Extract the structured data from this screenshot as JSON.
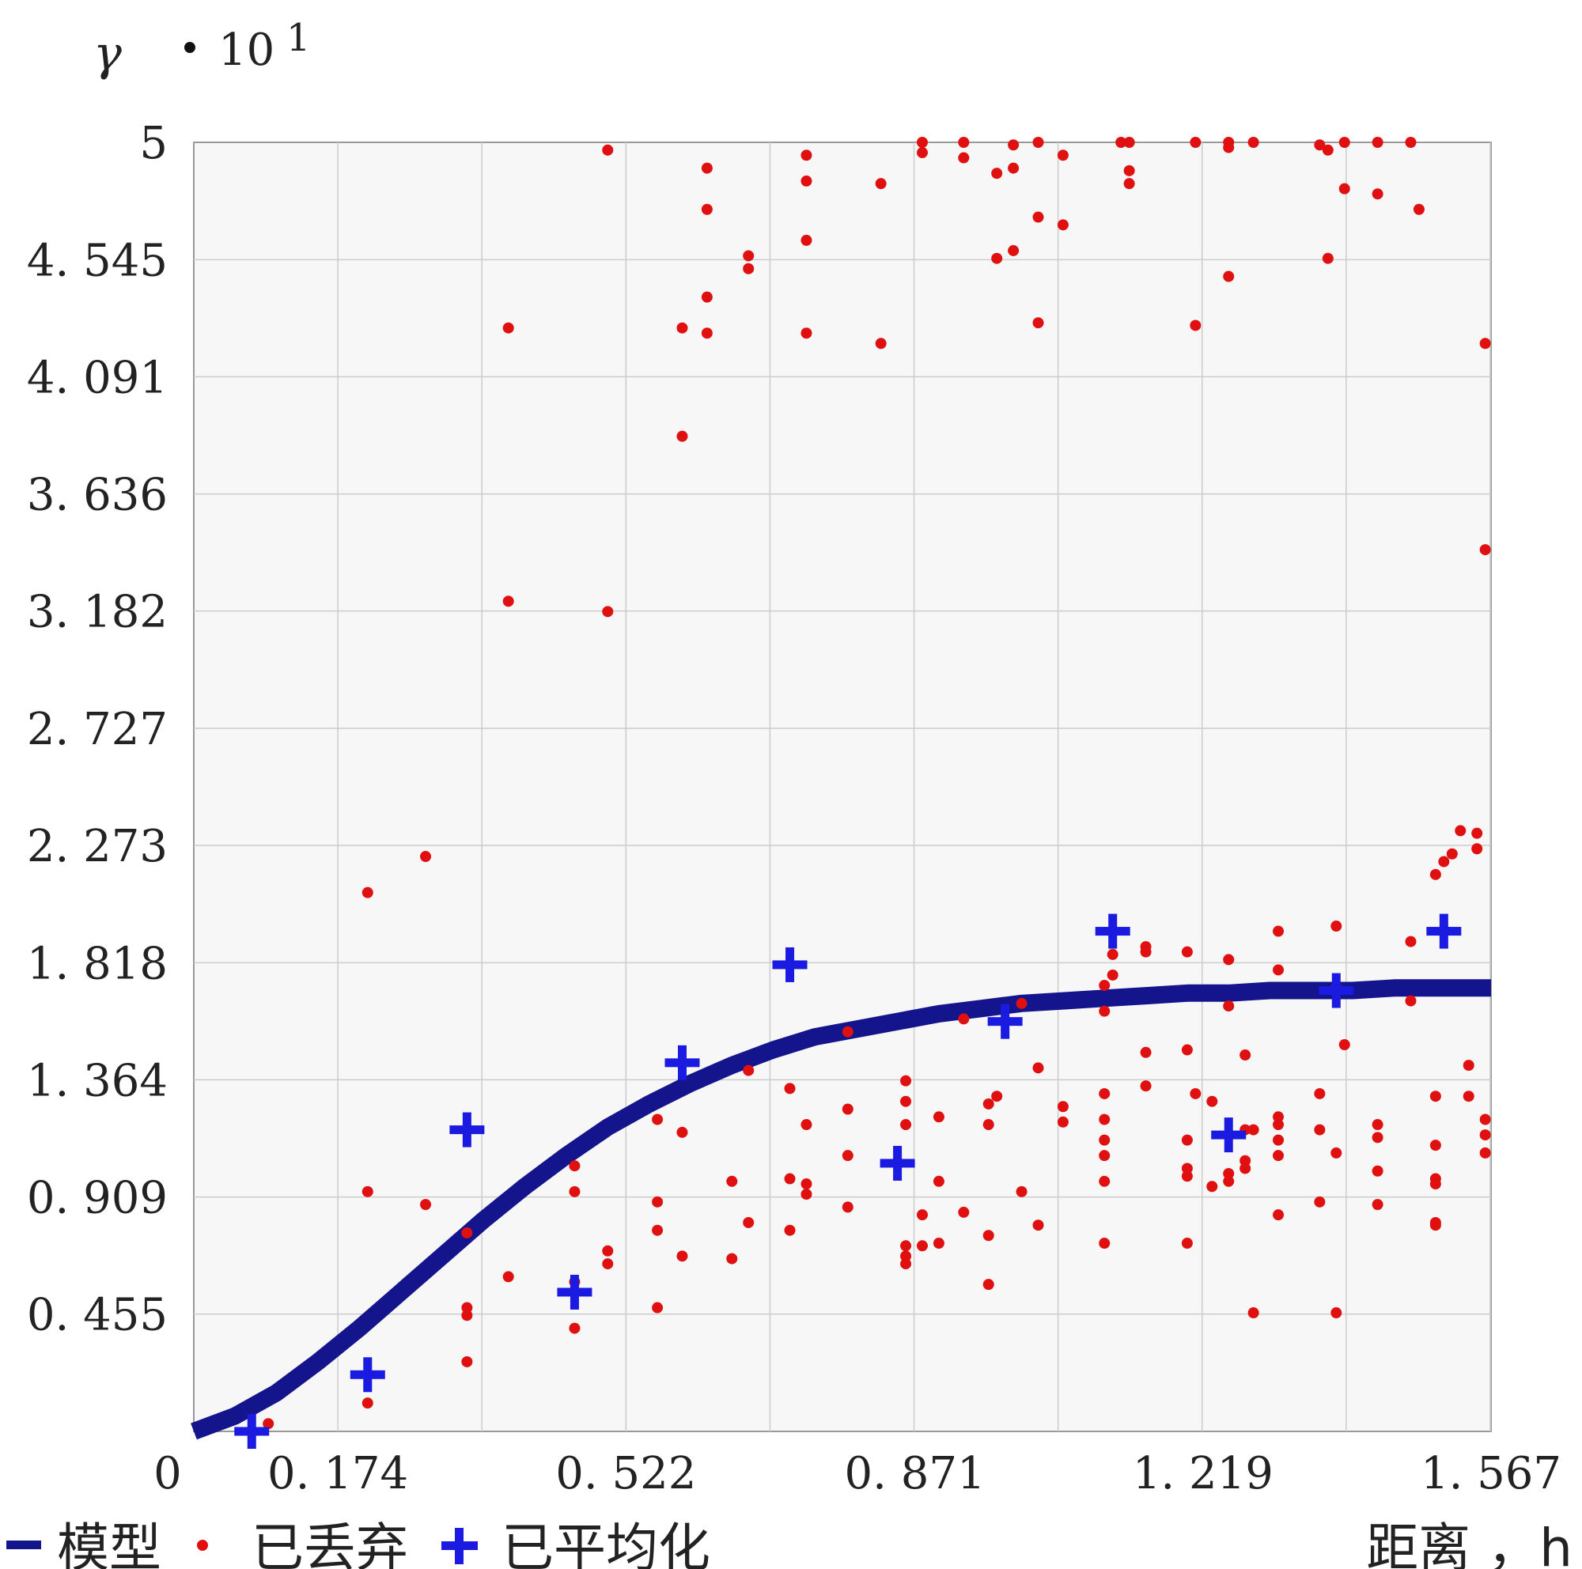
{
  "chart_data": {
    "type": "scatter",
    "y_symbol": "γ",
    "y_multiplier": "10",
    "y_exponent": "1",
    "x_tick_labels": [
      "0",
      "0. 174",
      "0. 522",
      "0. 871",
      "1. 219",
      "1. 567"
    ],
    "x_ticks": [
      0,
      0.174,
      0.522,
      0.871,
      1.219,
      1.567
    ],
    "y_tick_labels": [
      "5",
      "4. 545",
      "4. 091",
      "3. 636",
      "3. 182",
      "2. 727",
      "2. 273",
      "1. 818",
      "1. 364",
      "0. 909",
      "0. 455"
    ],
    "y_ticks": [
      5,
      4.545,
      4.091,
      3.636,
      3.182,
      2.727,
      2.273,
      1.818,
      1.364,
      0.909,
      0.455
    ],
    "xlim": [
      0,
      1.567
    ],
    "ylim": [
      0,
      5
    ],
    "grid": true,
    "legend_position": "bottom",
    "xlabel": "距离 ，h",
    "colors": {
      "model": "#14148c",
      "discarded": "#e01010",
      "averaged": "#1a1ae0",
      "grid": "#cccccc"
    },
    "series": [
      {
        "name": "模型",
        "type": "line",
        "x": [
          0,
          0.05,
          0.1,
          0.15,
          0.2,
          0.25,
          0.3,
          0.35,
          0.4,
          0.45,
          0.5,
          0.55,
          0.6,
          0.65,
          0.7,
          0.75,
          0.8,
          0.85,
          0.9,
          0.95,
          1.0,
          1.05,
          1.1,
          1.15,
          1.2,
          1.25,
          1.3,
          1.35,
          1.4,
          1.45,
          1.5,
          1.567
        ],
        "y": [
          0,
          0.06,
          0.15,
          0.27,
          0.4,
          0.54,
          0.68,
          0.82,
          0.95,
          1.07,
          1.18,
          1.27,
          1.35,
          1.42,
          1.48,
          1.53,
          1.56,
          1.59,
          1.62,
          1.64,
          1.66,
          1.67,
          1.68,
          1.69,
          1.7,
          1.7,
          1.71,
          1.71,
          1.71,
          1.72,
          1.72,
          1.72
        ]
      },
      {
        "name": "已丢弃",
        "type": "scatter",
        "points": [
          [
            0.09,
            0.03
          ],
          [
            0.21,
            0.11
          ],
          [
            0.21,
            0.93
          ],
          [
            0.21,
            2.09
          ],
          [
            0.28,
            0.88
          ],
          [
            0.28,
            2.23
          ],
          [
            0.33,
            0.27
          ],
          [
            0.33,
            0.45
          ],
          [
            0.33,
            0.48
          ],
          [
            0.33,
            0.77
          ],
          [
            0.38,
            0.6
          ],
          [
            0.38,
            4.28
          ],
          [
            0.38,
            3.22
          ],
          [
            0.46,
            0.4
          ],
          [
            0.46,
            0.58
          ],
          [
            0.46,
            0.93
          ],
          [
            0.46,
            1.03
          ],
          [
            0.5,
            0.65
          ],
          [
            0.5,
            0.7
          ],
          [
            0.5,
            3.18
          ],
          [
            0.5,
            4.97
          ],
          [
            0.56,
            0.48
          ],
          [
            0.56,
            0.78
          ],
          [
            0.56,
            0.89
          ],
          [
            0.56,
            1.21
          ],
          [
            0.59,
            0.68
          ],
          [
            0.59,
            1.16
          ],
          [
            0.59,
            3.86
          ],
          [
            0.59,
            4.28
          ],
          [
            0.62,
            4.26
          ],
          [
            0.62,
            4.4
          ],
          [
            0.62,
            4.74
          ],
          [
            0.62,
            4.9
          ],
          [
            0.65,
            0.67
          ],
          [
            0.65,
            0.97
          ],
          [
            0.67,
            0.81
          ],
          [
            0.67,
            1.4
          ],
          [
            0.67,
            4.51
          ],
          [
            0.67,
            4.56
          ],
          [
            0.72,
            0.78
          ],
          [
            0.72,
            0.98
          ],
          [
            0.72,
            1.33
          ],
          [
            0.74,
            0.92
          ],
          [
            0.74,
            0.96
          ],
          [
            0.74,
            1.19
          ],
          [
            0.74,
            4.26
          ],
          [
            0.74,
            4.62
          ],
          [
            0.74,
            4.85
          ],
          [
            0.74,
            4.95
          ],
          [
            0.79,
            0.87
          ],
          [
            0.79,
            1.07
          ],
          [
            0.79,
            1.25
          ],
          [
            0.79,
            1.55
          ],
          [
            0.83,
            4.22
          ],
          [
            0.83,
            4.84
          ],
          [
            0.86,
            0.65
          ],
          [
            0.86,
            0.68
          ],
          [
            0.86,
            0.72
          ],
          [
            0.86,
            1.19
          ],
          [
            0.86,
            1.28
          ],
          [
            0.86,
            1.36
          ],
          [
            0.88,
            0.72
          ],
          [
            0.88,
            0.84
          ],
          [
            0.88,
            4.96
          ],
          [
            0.88,
            5.0
          ],
          [
            0.9,
            0.73
          ],
          [
            0.9,
            0.97
          ],
          [
            0.9,
            1.22
          ],
          [
            0.93,
            0.85
          ],
          [
            0.93,
            1.6
          ],
          [
            0.93,
            4.94
          ],
          [
            0.93,
            5.0
          ],
          [
            0.96,
            0.57
          ],
          [
            0.96,
            0.76
          ],
          [
            0.96,
            1.19
          ],
          [
            0.96,
            1.27
          ],
          [
            0.97,
            1.3
          ],
          [
            0.97,
            4.55
          ],
          [
            0.97,
            4.88
          ],
          [
            0.99,
            4.58
          ],
          [
            0.99,
            4.9
          ],
          [
            0.99,
            4.99
          ],
          [
            1.0,
            0.93
          ],
          [
            1.0,
            1.66
          ],
          [
            1.02,
            0.8
          ],
          [
            1.02,
            1.41
          ],
          [
            1.02,
            4.3
          ],
          [
            1.02,
            4.71
          ],
          [
            1.02,
            5.0
          ],
          [
            1.05,
            1.2
          ],
          [
            1.05,
            1.26
          ],
          [
            1.05,
            4.68
          ],
          [
            1.05,
            4.95
          ],
          [
            1.1,
            0.73
          ],
          [
            1.1,
            0.97
          ],
          [
            1.1,
            1.07
          ],
          [
            1.1,
            1.13
          ],
          [
            1.1,
            1.21
          ],
          [
            1.1,
            1.31
          ],
          [
            1.1,
            1.63
          ],
          [
            1.1,
            1.73
          ],
          [
            1.11,
            1.77
          ],
          [
            1.11,
            1.85
          ],
          [
            1.12,
            5.0
          ],
          [
            1.13,
            4.84
          ],
          [
            1.13,
            4.89
          ],
          [
            1.13,
            5.0
          ],
          [
            1.15,
            1.34
          ],
          [
            1.15,
            1.47
          ],
          [
            1.15,
            1.86
          ],
          [
            1.15,
            1.88
          ],
          [
            1.2,
            0.73
          ],
          [
            1.2,
            0.99
          ],
          [
            1.2,
            1.02
          ],
          [
            1.2,
            1.13
          ],
          [
            1.2,
            1.86
          ],
          [
            1.2,
            1.48
          ],
          [
            1.21,
            1.31
          ],
          [
            1.21,
            4.29
          ],
          [
            1.21,
            5.0
          ],
          [
            1.23,
            0.95
          ],
          [
            1.23,
            1.28
          ],
          [
            1.25,
            0.97
          ],
          [
            1.25,
            1.0
          ],
          [
            1.25,
            1.65
          ],
          [
            1.25,
            1.83
          ],
          [
            1.25,
            4.48
          ],
          [
            1.25,
            4.98
          ],
          [
            1.25,
            5.0
          ],
          [
            1.27,
            1.02
          ],
          [
            1.27,
            1.05
          ],
          [
            1.27,
            1.17
          ],
          [
            1.27,
            1.46
          ],
          [
            1.28,
            0.46
          ],
          [
            1.28,
            1.17
          ],
          [
            1.28,
            5.0
          ],
          [
            1.31,
            0.84
          ],
          [
            1.31,
            1.07
          ],
          [
            1.31,
            1.13
          ],
          [
            1.31,
            1.19
          ],
          [
            1.31,
            1.22
          ],
          [
            1.31,
            1.79
          ],
          [
            1.31,
            1.94
          ],
          [
            1.36,
            0.89
          ],
          [
            1.36,
            1.17
          ],
          [
            1.36,
            1.31
          ],
          [
            1.36,
            4.99
          ],
          [
            1.37,
            4.97
          ],
          [
            1.37,
            4.55
          ],
          [
            1.38,
            0.46
          ],
          [
            1.38,
            1.08
          ],
          [
            1.38,
            1.72
          ],
          [
            1.38,
            1.96
          ],
          [
            1.39,
            1.5
          ],
          [
            1.39,
            4.82
          ],
          [
            1.39,
            5.0
          ],
          [
            1.43,
            0.88
          ],
          [
            1.43,
            1.01
          ],
          [
            1.43,
            1.14
          ],
          [
            1.43,
            1.19
          ],
          [
            1.43,
            4.8
          ],
          [
            1.43,
            5.0
          ],
          [
            1.47,
            1.67
          ],
          [
            1.47,
            1.9
          ],
          [
            1.47,
            5.0
          ],
          [
            1.48,
            4.74
          ],
          [
            1.5,
            0.8
          ],
          [
            1.5,
            0.81
          ],
          [
            1.5,
            0.96
          ],
          [
            1.5,
            0.98
          ],
          [
            1.5,
            1.11
          ],
          [
            1.5,
            1.3
          ],
          [
            1.5,
            2.16
          ],
          [
            1.51,
            2.21
          ],
          [
            1.52,
            2.24
          ],
          [
            1.53,
            2.33
          ],
          [
            1.54,
            1.3
          ],
          [
            1.54,
            1.42
          ],
          [
            1.55,
            2.32
          ],
          [
            1.55,
            2.26
          ],
          [
            1.56,
            1.08
          ],
          [
            1.56,
            1.15
          ],
          [
            1.56,
            1.21
          ],
          [
            1.56,
            3.42
          ],
          [
            1.56,
            4.22
          ]
        ]
      },
      {
        "name": "已平均化",
        "type": "scatter",
        "points": [
          [
            0.07,
            0.0
          ],
          [
            0.21,
            0.22
          ],
          [
            0.33,
            1.17
          ],
          [
            0.46,
            0.54
          ],
          [
            0.59,
            1.43
          ],
          [
            0.72,
            1.81
          ],
          [
            0.85,
            1.04
          ],
          [
            0.98,
            1.59
          ],
          [
            1.11,
            1.94
          ],
          [
            1.25,
            1.15
          ],
          [
            1.38,
            1.71
          ],
          [
            1.51,
            1.94
          ]
        ]
      }
    ]
  }
}
